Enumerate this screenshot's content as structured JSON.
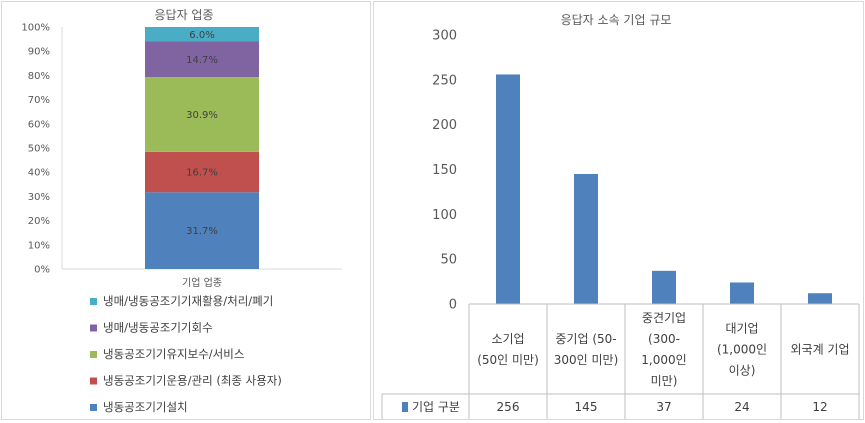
{
  "chart_data": [
    {
      "type": "bar",
      "stacked": true,
      "percent": true,
      "title": "응답자 업종",
      "categories": [
        "기업 업종"
      ],
      "ylim": [
        0,
        100
      ],
      "yticks": [
        "0%",
        "10%",
        "20%",
        "30%",
        "40%",
        "50%",
        "60%",
        "70%",
        "80%",
        "90%",
        "100%"
      ],
      "grid": false,
      "legend_position": "bottom",
      "series": [
        {
          "name": "냉동공조기기설치",
          "values": [
            31.7
          ],
          "label": "31.7%",
          "color": "#4f81bd"
        },
        {
          "name": "냉동공조기기운용/관리 (최종 사용자)",
          "values": [
            16.7
          ],
          "label": "16.7%",
          "color": "#c0504d"
        },
        {
          "name": "냉동공조기기유지보수/서비스",
          "values": [
            30.9
          ],
          "label": "30.9%",
          "color": "#9bbb59"
        },
        {
          "name": "냉매/냉동공조기기회수",
          "values": [
            14.7
          ],
          "label": "14.7%",
          "color": "#8064a2"
        },
        {
          "name": "냉매/냉동공조기기재활용/처리/폐기",
          "values": [
            6.0
          ],
          "label": "6.0%",
          "color": "#4bacc6"
        }
      ]
    },
    {
      "type": "bar",
      "title": "응답자 소속 기업 규모",
      "categories": [
        [
          "소기업",
          "(50인 미만)"
        ],
        [
          "중기업 (50-",
          "300인 미만)"
        ],
        [
          "중견기업",
          "(300-",
          "1,000인",
          "미만)"
        ],
        [
          "대기업",
          "(1,000인",
          "이상)"
        ],
        [
          "외국계 기업"
        ]
      ],
      "ylim": [
        0,
        300
      ],
      "yticks": [
        "0",
        "50",
        "100",
        "150",
        "200",
        "250",
        "300"
      ],
      "grid": false,
      "legend_position": "data-table",
      "series": [
        {
          "name": "기업 구분",
          "values": [
            256,
            145,
            37,
            24,
            12
          ],
          "labels": [
            "256",
            "145",
            "37",
            "24",
            "12"
          ],
          "color": "#4f81bd"
        }
      ]
    }
  ]
}
